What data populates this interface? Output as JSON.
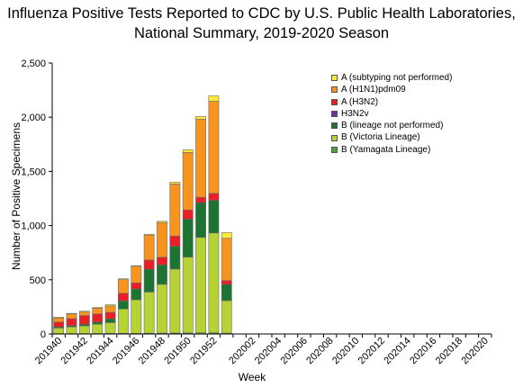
{
  "title_line1": "Influenza Positive Tests Reported to CDC by U.S. Public Health Laboratories,",
  "title_line2": "National Summary,  2019-2020 Season",
  "chart_data": {
    "type": "bar",
    "stacked": true,
    "xlabel": "Week",
    "ylabel": "Number of Positive Specimens",
    "ylim": [
      0,
      2500
    ],
    "yticks": [
      "0",
      "500",
      "1,000",
      "1,500",
      "2,000",
      "2,500"
    ],
    "grid": false,
    "legend_position": "top-right",
    "categories": [
      "201940",
      "201941",
      "201942",
      "201943",
      "201944",
      "201945",
      "201946",
      "201947",
      "201948",
      "201949",
      "201950",
      "201951",
      "201952",
      "201953",
      "202001",
      "202002",
      "202003",
      "202004",
      "202005",
      "202006",
      "202007",
      "202008",
      "202009",
      "202010",
      "202011",
      "202012",
      "202013",
      "202014",
      "202015",
      "202016",
      "202017",
      "202018",
      "202019",
      "202020"
    ],
    "tick_labels": [
      "201940",
      "201942",
      "201944",
      "201946",
      "201948",
      "201950",
      "201952",
      "202002",
      "202004",
      "202006",
      "202008",
      "202010",
      "202012",
      "202014",
      "202016",
      "202018",
      "202020"
    ],
    "series": [
      {
        "name": "B (Yamagata Lineage)",
        "color": "#4aa336",
        "values": [
          3,
          3,
          3,
          4,
          5,
          6,
          6,
          7,
          8,
          9,
          10,
          11,
          12,
          8,
          0,
          0,
          0,
          0,
          0,
          0,
          0,
          0,
          0,
          0,
          0,
          0,
          0,
          0,
          0,
          0,
          0,
          0,
          0,
          0
        ]
      },
      {
        "name": "B (Victoria Lineage)",
        "color": "#b5d334",
        "values": [
          52,
          62,
          72,
          86,
          100,
          225,
          310,
          380,
          450,
          590,
          700,
          880,
          920,
          300,
          0,
          0,
          0,
          0,
          0,
          0,
          0,
          0,
          0,
          0,
          0,
          0,
          0,
          0,
          0,
          0,
          0,
          0,
          0,
          0
        ]
      },
      {
        "name": "B (lineage not performed)",
        "color": "#1d7331",
        "values": [
          10,
          12,
          15,
          20,
          35,
          75,
          100,
          210,
          180,
          210,
          350,
          320,
          300,
          150,
          0,
          0,
          0,
          0,
          0,
          0,
          0,
          0,
          0,
          0,
          0,
          0,
          0,
          0,
          0,
          0,
          0,
          0,
          0,
          0
        ]
      },
      {
        "name": "H3N2v",
        "color": "#7030a0",
        "values": [
          0,
          0,
          0,
          0,
          0,
          0,
          0,
          0,
          0,
          0,
          0,
          0,
          0,
          0,
          0,
          0,
          0,
          0,
          0,
          0,
          0,
          0,
          0,
          0,
          0,
          0,
          0,
          0,
          0,
          0,
          0,
          0,
          0,
          0
        ]
      },
      {
        "name": "A (H3N2)",
        "color": "#e81f26",
        "values": [
          45,
          65,
          80,
          75,
          60,
          70,
          55,
          85,
          70,
          95,
          85,
          50,
          65,
          35,
          0,
          0,
          0,
          0,
          0,
          0,
          0,
          0,
          0,
          0,
          0,
          0,
          0,
          0,
          0,
          0,
          0,
          0,
          0,
          0
        ]
      },
      {
        "name": "A (H1N1)pdm09",
        "color": "#f7941d",
        "values": [
          38,
          43,
          32,
          53,
          58,
          125,
          155,
          230,
          320,
          480,
          530,
          720,
          850,
          390,
          0,
          0,
          0,
          0,
          0,
          0,
          0,
          0,
          0,
          0,
          0,
          0,
          0,
          0,
          0,
          0,
          0,
          0,
          0,
          0
        ]
      },
      {
        "name": "A (subtyping not performed)",
        "color": "#ffe93b",
        "values": [
          7,
          5,
          8,
          7,
          12,
          9,
          4,
          8,
          12,
          16,
          25,
          25,
          50,
          52,
          0,
          0,
          0,
          0,
          0,
          0,
          0,
          0,
          0,
          0,
          0,
          0,
          0,
          0,
          0,
          0,
          0,
          0,
          0,
          0
        ]
      }
    ],
    "legend_order": [
      "A (subtyping not performed)",
      "A (H1N1)pdm09",
      "A (H3N2)",
      "H3N2v",
      "B (lineage not performed)",
      "B (Victoria Lineage)",
      "B (Yamagata Lineage)"
    ]
  }
}
